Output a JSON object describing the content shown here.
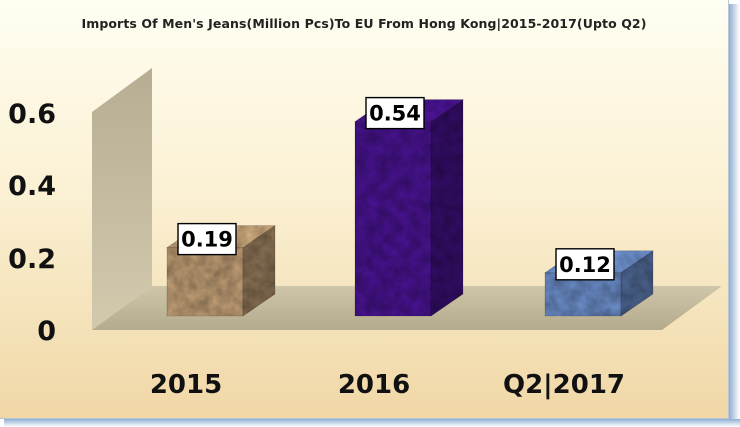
{
  "chart_data": {
    "type": "bar",
    "title": "Imports Of Men's Jeans(Million Pcs)To EU From Hong Kong|2015-2017(Upto Q2)",
    "xlabel": "",
    "ylabel": "",
    "categories": [
      "2015",
      "2016",
      "Q2|2017"
    ],
    "values": [
      0.19,
      0.54,
      0.12
    ],
    "data_labels": [
      "0.19",
      "0.54",
      "0.12"
    ],
    "ylim": [
      0,
      0.6
    ],
    "yticks": [
      "0",
      "0.2",
      "0.4",
      "0.6"
    ],
    "grid": false,
    "legend": "none",
    "bar_colors": [
      "#c9a57a",
      "#4b1496",
      "#6f92d0"
    ],
    "style": "3d"
  }
}
